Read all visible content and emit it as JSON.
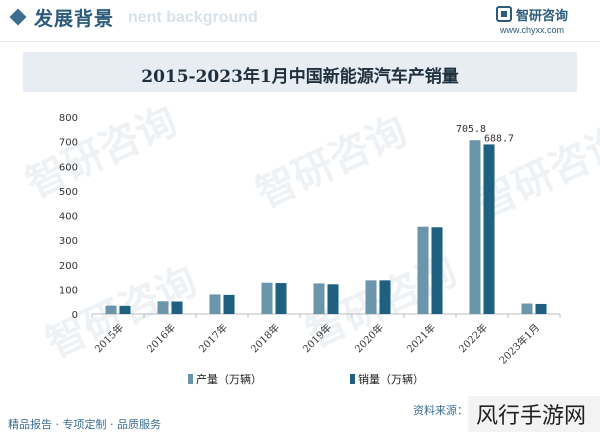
{
  "header": {
    "title": "发展背景",
    "subtitle_ghost": "nent background",
    "brand_name": "智研咨询",
    "brand_url": "www.chyxx.com"
  },
  "chart_title": "2015-2023年1月中国新能源汽车产销量",
  "chart_data": {
    "type": "bar",
    "title": "2015-2023年1月中国新能源汽车产销量",
    "categories": [
      "2015年",
      "2016年",
      "2017年",
      "2018年",
      "2019年",
      "2020年",
      "2021年",
      "2022年",
      "2023年1月"
    ],
    "series": [
      {
        "name": "产量（万辆）",
        "color": "#6a95ab",
        "values": [
          34,
          51.7,
          79.4,
          127,
          124.2,
          136.6,
          354.5,
          705.8,
          42.5
        ]
      },
      {
        "name": "销量（万辆）",
        "color": "#1f5f80",
        "values": [
          33.1,
          50.7,
          77.7,
          125.6,
          120.6,
          136.7,
          352.1,
          688.7,
          40.8
        ]
      }
    ],
    "data_labels": [
      "705.8",
      "688.7"
    ],
    "y_ticks": [
      "0",
      "100",
      "200",
      "300",
      "400",
      "500",
      "600",
      "700",
      "800"
    ],
    "ylim": [
      0,
      800
    ],
    "grid": false,
    "legend_position": "bottom"
  },
  "footer": {
    "left": "精品报告 · 专项定制 · 品质服务",
    "source": "资料来源："
  },
  "watermark_text": "风行手游网",
  "bg_watermark": "智研咨询"
}
